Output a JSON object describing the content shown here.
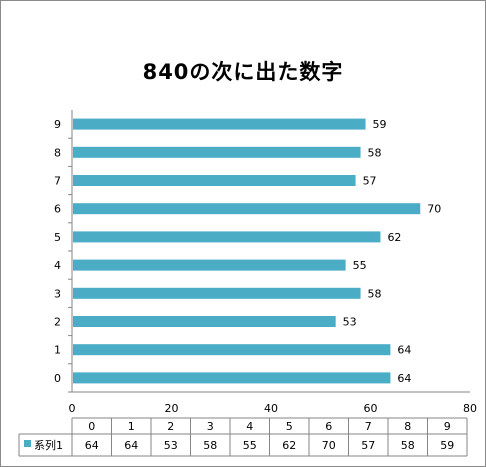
{
  "chart_data": {
    "type": "bar",
    "orientation": "horizontal",
    "title": "840の次に出た数字",
    "categories": [
      "0",
      "1",
      "2",
      "3",
      "4",
      "5",
      "6",
      "7",
      "8",
      "9"
    ],
    "series": [
      {
        "name": "系列1",
        "values": [
          64,
          64,
          53,
          58,
          55,
          62,
          70,
          57,
          58,
          59
        ],
        "color": "#4bacc6"
      }
    ],
    "xlim": [
      0,
      80
    ],
    "x_ticks": [
      "0",
      "20",
      "40",
      "60",
      "80"
    ],
    "data_labels": true,
    "data_table": true,
    "grid": false,
    "legend": "data-table"
  }
}
